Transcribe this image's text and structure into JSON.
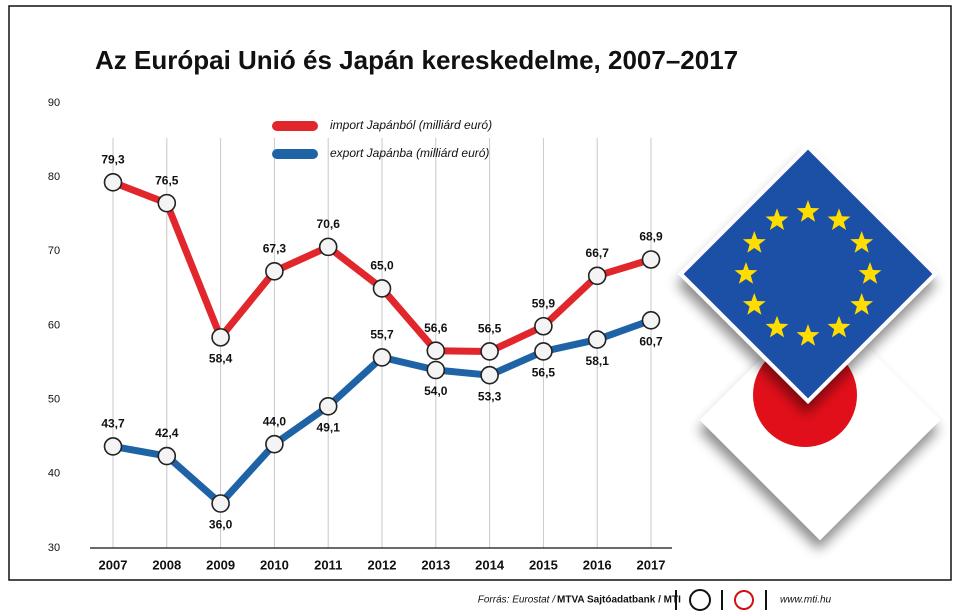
{
  "chart_data": {
    "type": "line",
    "title": "Az Európai Unió és Japán kereskedelme, 2007–2017",
    "categories": [
      "2007",
      "2008",
      "2009",
      "2010",
      "2011",
      "2012",
      "2013",
      "2014",
      "2015",
      "2016",
      "2017"
    ],
    "series": [
      {
        "name": "import Japánból (milliárd euró)",
        "color": "#e1262c",
        "values": [
          79.3,
          76.5,
          58.4,
          67.3,
          70.6,
          65.0,
          56.6,
          56.5,
          59.9,
          66.7,
          68.9
        ],
        "value_labels": [
          "79,3",
          "76,5",
          "58,4",
          "67,3",
          "70,6",
          "65,0",
          "56,6",
          "56,5",
          "59,9",
          "66,7",
          "68,9"
        ]
      },
      {
        "name": "export Japánba (milliárd euró)",
        "color": "#1f63a7",
        "values": [
          43.7,
          42.4,
          36.0,
          44.0,
          49.1,
          55.7,
          54.0,
          53.3,
          56.5,
          58.1,
          60.7
        ],
        "value_labels": [
          "43,7",
          "42,4",
          "36,0",
          "44,0",
          "49,1",
          "55,7",
          "54,0",
          "53,3",
          "56,5",
          "58,1",
          "60,7"
        ]
      }
    ],
    "ylim": [
      30,
      90
    ],
    "yticks": [
      30,
      40,
      50,
      60,
      70,
      80,
      90
    ],
    "source": [
      "Forrás: Eurostat /",
      "MTVA Sajtóadatbank / MTI"
    ],
    "website": "www.mti.hu"
  }
}
